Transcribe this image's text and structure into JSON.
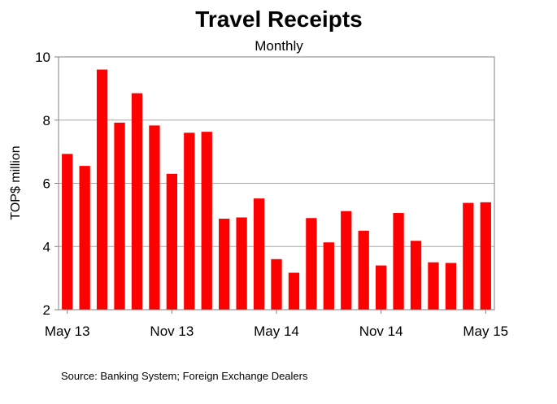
{
  "chart_data": {
    "type": "bar",
    "title": "Travel Receipts",
    "subtitle": "Monthly",
    "ylabel": "TOP$ million",
    "xlabel": "",
    "ylim": [
      2,
      10
    ],
    "yticks": [
      "2",
      "4",
      "6",
      "8",
      "10"
    ],
    "xtick_labels": [
      "May 13",
      "Nov 13",
      "May 14",
      "Nov 14",
      "May 15"
    ],
    "grid": true,
    "bar_color": "#ff0000",
    "categories": [
      "May 13",
      "Jun 13",
      "Jul 13",
      "Aug 13",
      "Sep 13",
      "Oct 13",
      "Nov 13",
      "Dec 13",
      "Jan 14",
      "Feb 14",
      "Mar 14",
      "Apr 14",
      "May 14",
      "Jun 14",
      "Jul 14",
      "Aug 14",
      "Sep 14",
      "Oct 14",
      "Nov 14",
      "Dec 14",
      "Jan 15",
      "Feb 15",
      "Mar 15",
      "Apr 15",
      "May 15"
    ],
    "values": [
      6.93,
      6.55,
      9.6,
      7.92,
      8.85,
      7.83,
      6.3,
      7.6,
      7.63,
      4.88,
      4.92,
      5.52,
      3.6,
      3.17,
      4.9,
      4.13,
      5.12,
      4.5,
      3.4,
      5.06,
      4.18,
      3.5,
      3.48,
      5.38,
      5.4
    ]
  },
  "source": "Source: Banking System; Foreign Exchange Dealers"
}
